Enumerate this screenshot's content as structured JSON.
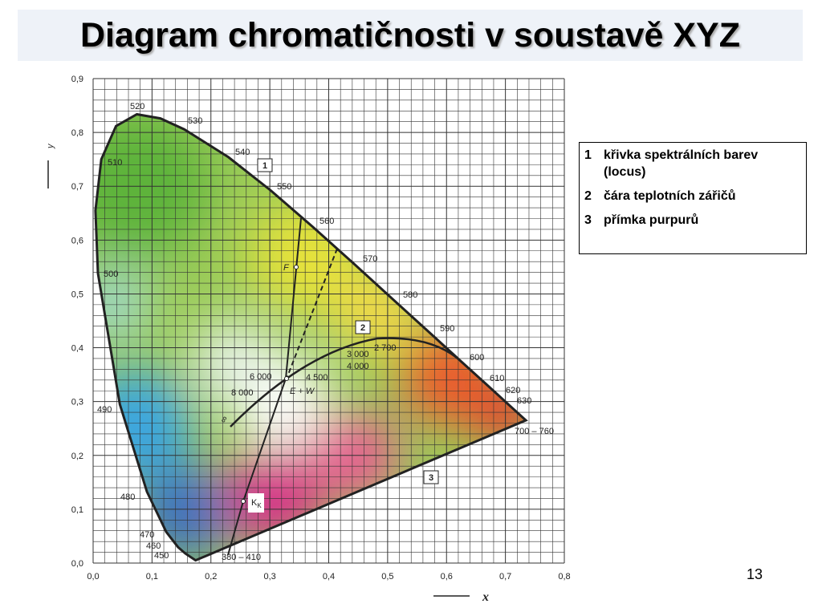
{
  "title": "Diagram chromatičnosti v soustavě XYZ",
  "page_number": "13",
  "legend": [
    {
      "number": "1",
      "text": "křivka spektrálních barev  (locus)"
    },
    {
      "number": "2",
      "text": "čára teplotních zářičů"
    },
    {
      "number": "3",
      "text": "přímka purpurů"
    }
  ],
  "diagram": {
    "x_axis_label": "x",
    "y_axis_label": "y",
    "x_ticks": [
      "0,0",
      "0,1",
      "0,2",
      "0,3",
      "0,4",
      "0,5",
      "0,6",
      "0,7",
      "0,8"
    ],
    "y_ticks": [
      "0,0",
      "0,1",
      "0,2",
      "0,3",
      "0,4",
      "0,5",
      "0,6",
      "0,7",
      "0,8",
      "0,9"
    ],
    "wavelength_labels": [
      "520",
      "530",
      "540",
      "550",
      "560",
      "570",
      "580",
      "590",
      "600",
      "610",
      "620",
      "630",
      "700 – 760",
      "510",
      "500",
      "490",
      "480",
      "470",
      "460",
      "450",
      "380 – 410"
    ],
    "temperature_labels": [
      "2 700",
      "3 000",
      "4 000",
      "4 500",
      "6 000",
      "8 000"
    ],
    "infinity_label": "∞",
    "curve_labels": [
      "1",
      "2",
      "3"
    ],
    "point_labels": {
      "f": "F",
      "ew": "E + W",
      "k": {
        "main": "K",
        "sub": "K"
      }
    }
  }
}
